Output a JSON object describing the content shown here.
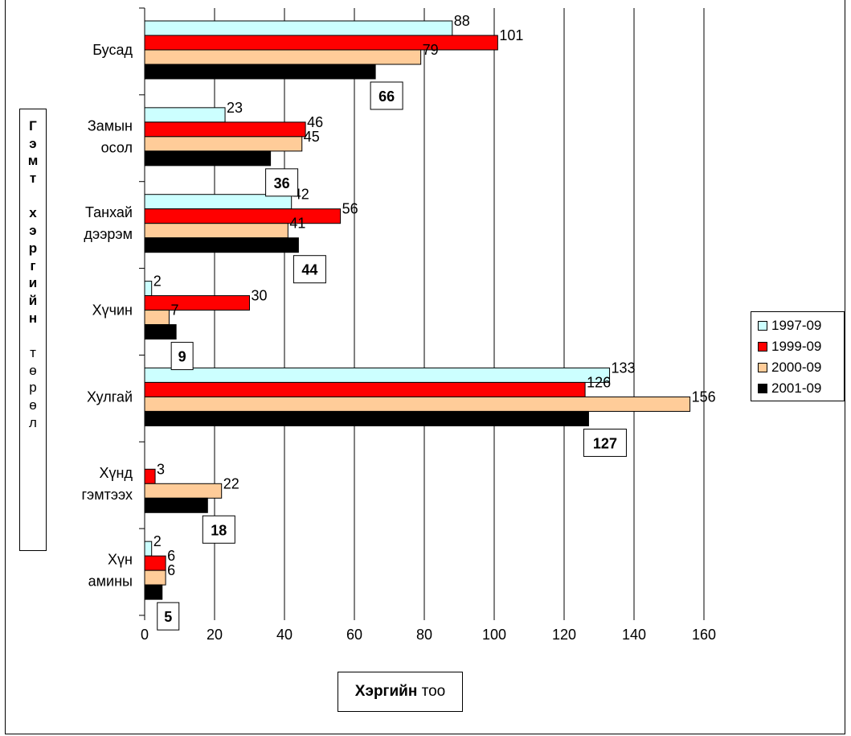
{
  "chart_data": {
    "type": "bar",
    "orientation": "horizontal",
    "categories": [
      "Бусад",
      "Замын осол",
      "Танхай дээрэм",
      "Хүчин",
      "Хулгай",
      "Хүнд гэмтээх",
      "Хүн амины"
    ],
    "category_lines": [
      [
        "Бусад"
      ],
      [
        "Замын",
        "осол"
      ],
      [
        "Танхай",
        "дээрэм"
      ],
      [
        "Хүчин"
      ],
      [
        "Хулгай"
      ],
      [
        "Хүнд",
        "гэмтээх"
      ],
      [
        "Хүн",
        "амины"
      ]
    ],
    "series": [
      {
        "name": "1997-09",
        "color": "#ccffff",
        "values": [
          88,
          23,
          42,
          2,
          133,
          0,
          2
        ]
      },
      {
        "name": "1999-09",
        "color": "#ff0000",
        "values": [
          101,
          46,
          56,
          30,
          126,
          3,
          6
        ]
      },
      {
        "name": "2000-09",
        "color": "#ffcc99",
        "values": [
          79,
          45,
          41,
          7,
          156,
          22,
          6
        ]
      },
      {
        "name": "2001-09",
        "color": "#000000",
        "values": [
          66,
          36,
          44,
          9,
          127,
          18,
          5
        ]
      }
    ],
    "data_labels": [
      [
        "88",
        "23",
        "42",
        "2",
        "133",
        "",
        "2"
      ],
      [
        "101",
        "46",
        "56",
        "30",
        "126",
        "3",
        "6"
      ],
      [
        "79",
        "45",
        "41",
        "7",
        "156",
        "22",
        "6"
      ],
      [
        "66",
        "36",
        "44",
        "9",
        "127",
        "18",
        "5"
      ]
    ],
    "xlim": [
      0,
      160
    ],
    "xticks": [
      "0",
      "20",
      "40",
      "60",
      "80",
      "100",
      "120",
      "140",
      "160"
    ],
    "grid": "vertical",
    "legend": "right",
    "xlabel_bold": "Хэргийн",
    "xlabel_rest": "тоо",
    "ylabel_chars": [
      "Г",
      "э",
      "м",
      "т",
      " ",
      "х",
      "э",
      "р",
      "г",
      "и",
      "й",
      "н",
      " ",
      "т",
      "ө",
      "р",
      "ө",
      "л"
    ],
    "ylabel_bold_count": 12
  }
}
